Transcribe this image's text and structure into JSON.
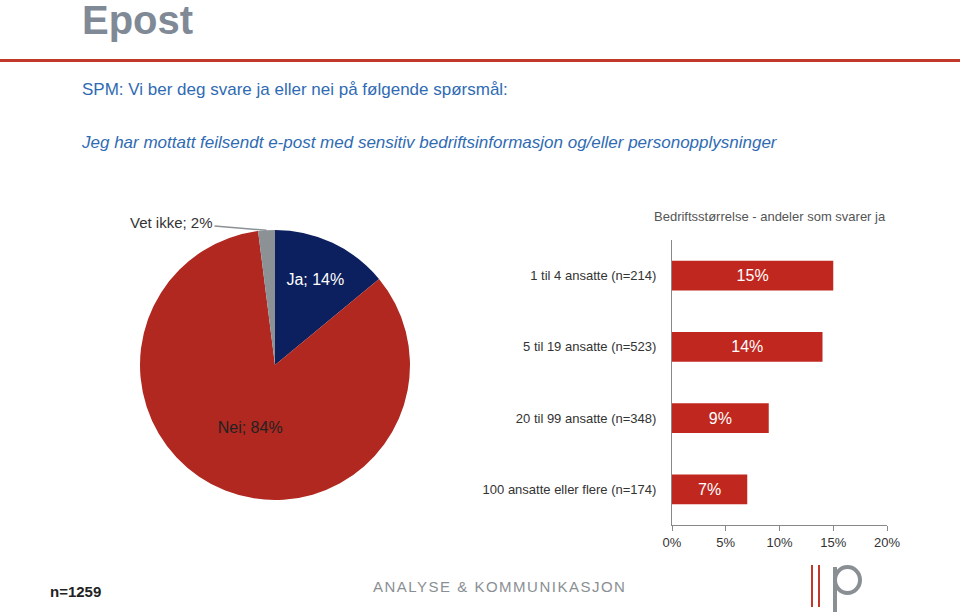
{
  "header": {
    "title": "Epost",
    "question": "SPM: Vi ber deg svare ja eller nei på følgende spørsmål:",
    "statement": "Jeg har mottatt feilsendt e-post med sensitiv bedriftsinformasjon og/eller personopplysninger"
  },
  "chart_data": [
    {
      "type": "pie",
      "categories": [
        "Ja",
        "Nei",
        "Vet ikke"
      ],
      "values": [
        14,
        84,
        2
      ],
      "value_labels": [
        "Ja; 14%",
        "Nei; 84%",
        "Vet ikke; 2%"
      ],
      "colors": [
        "#0c1f5e",
        "#b0281f",
        "#8c9196"
      ],
      "data_labels": true
    },
    {
      "type": "bar",
      "title": "Bedriftsstørrelse - andeler som svarer ja",
      "orientation": "horizontal",
      "categories": [
        "1 til 4 ansatte (n=214)",
        "5 til 19 ansatte (n=523)",
        "20 til 99 ansatte (n=348)",
        "100 ansatte eller flere (n=174)"
      ],
      "values": [
        15,
        14,
        9,
        7
      ],
      "value_labels": [
        "15%",
        "14%",
        "9%",
        "7%"
      ],
      "color": "#c0281f",
      "xlim": [
        0,
        20
      ],
      "xticks": [
        {
          "value": 0,
          "label": "0%"
        },
        {
          "value": 5,
          "label": "5%"
        },
        {
          "value": 10,
          "label": "10%"
        },
        {
          "value": 15,
          "label": "15%"
        },
        {
          "value": 20,
          "label": "20%"
        }
      ],
      "grid": false,
      "data_labels": true
    }
  ],
  "footer": {
    "sample": "n=1259",
    "brand": "ANALYSE & KOMMUNIKASJON"
  }
}
